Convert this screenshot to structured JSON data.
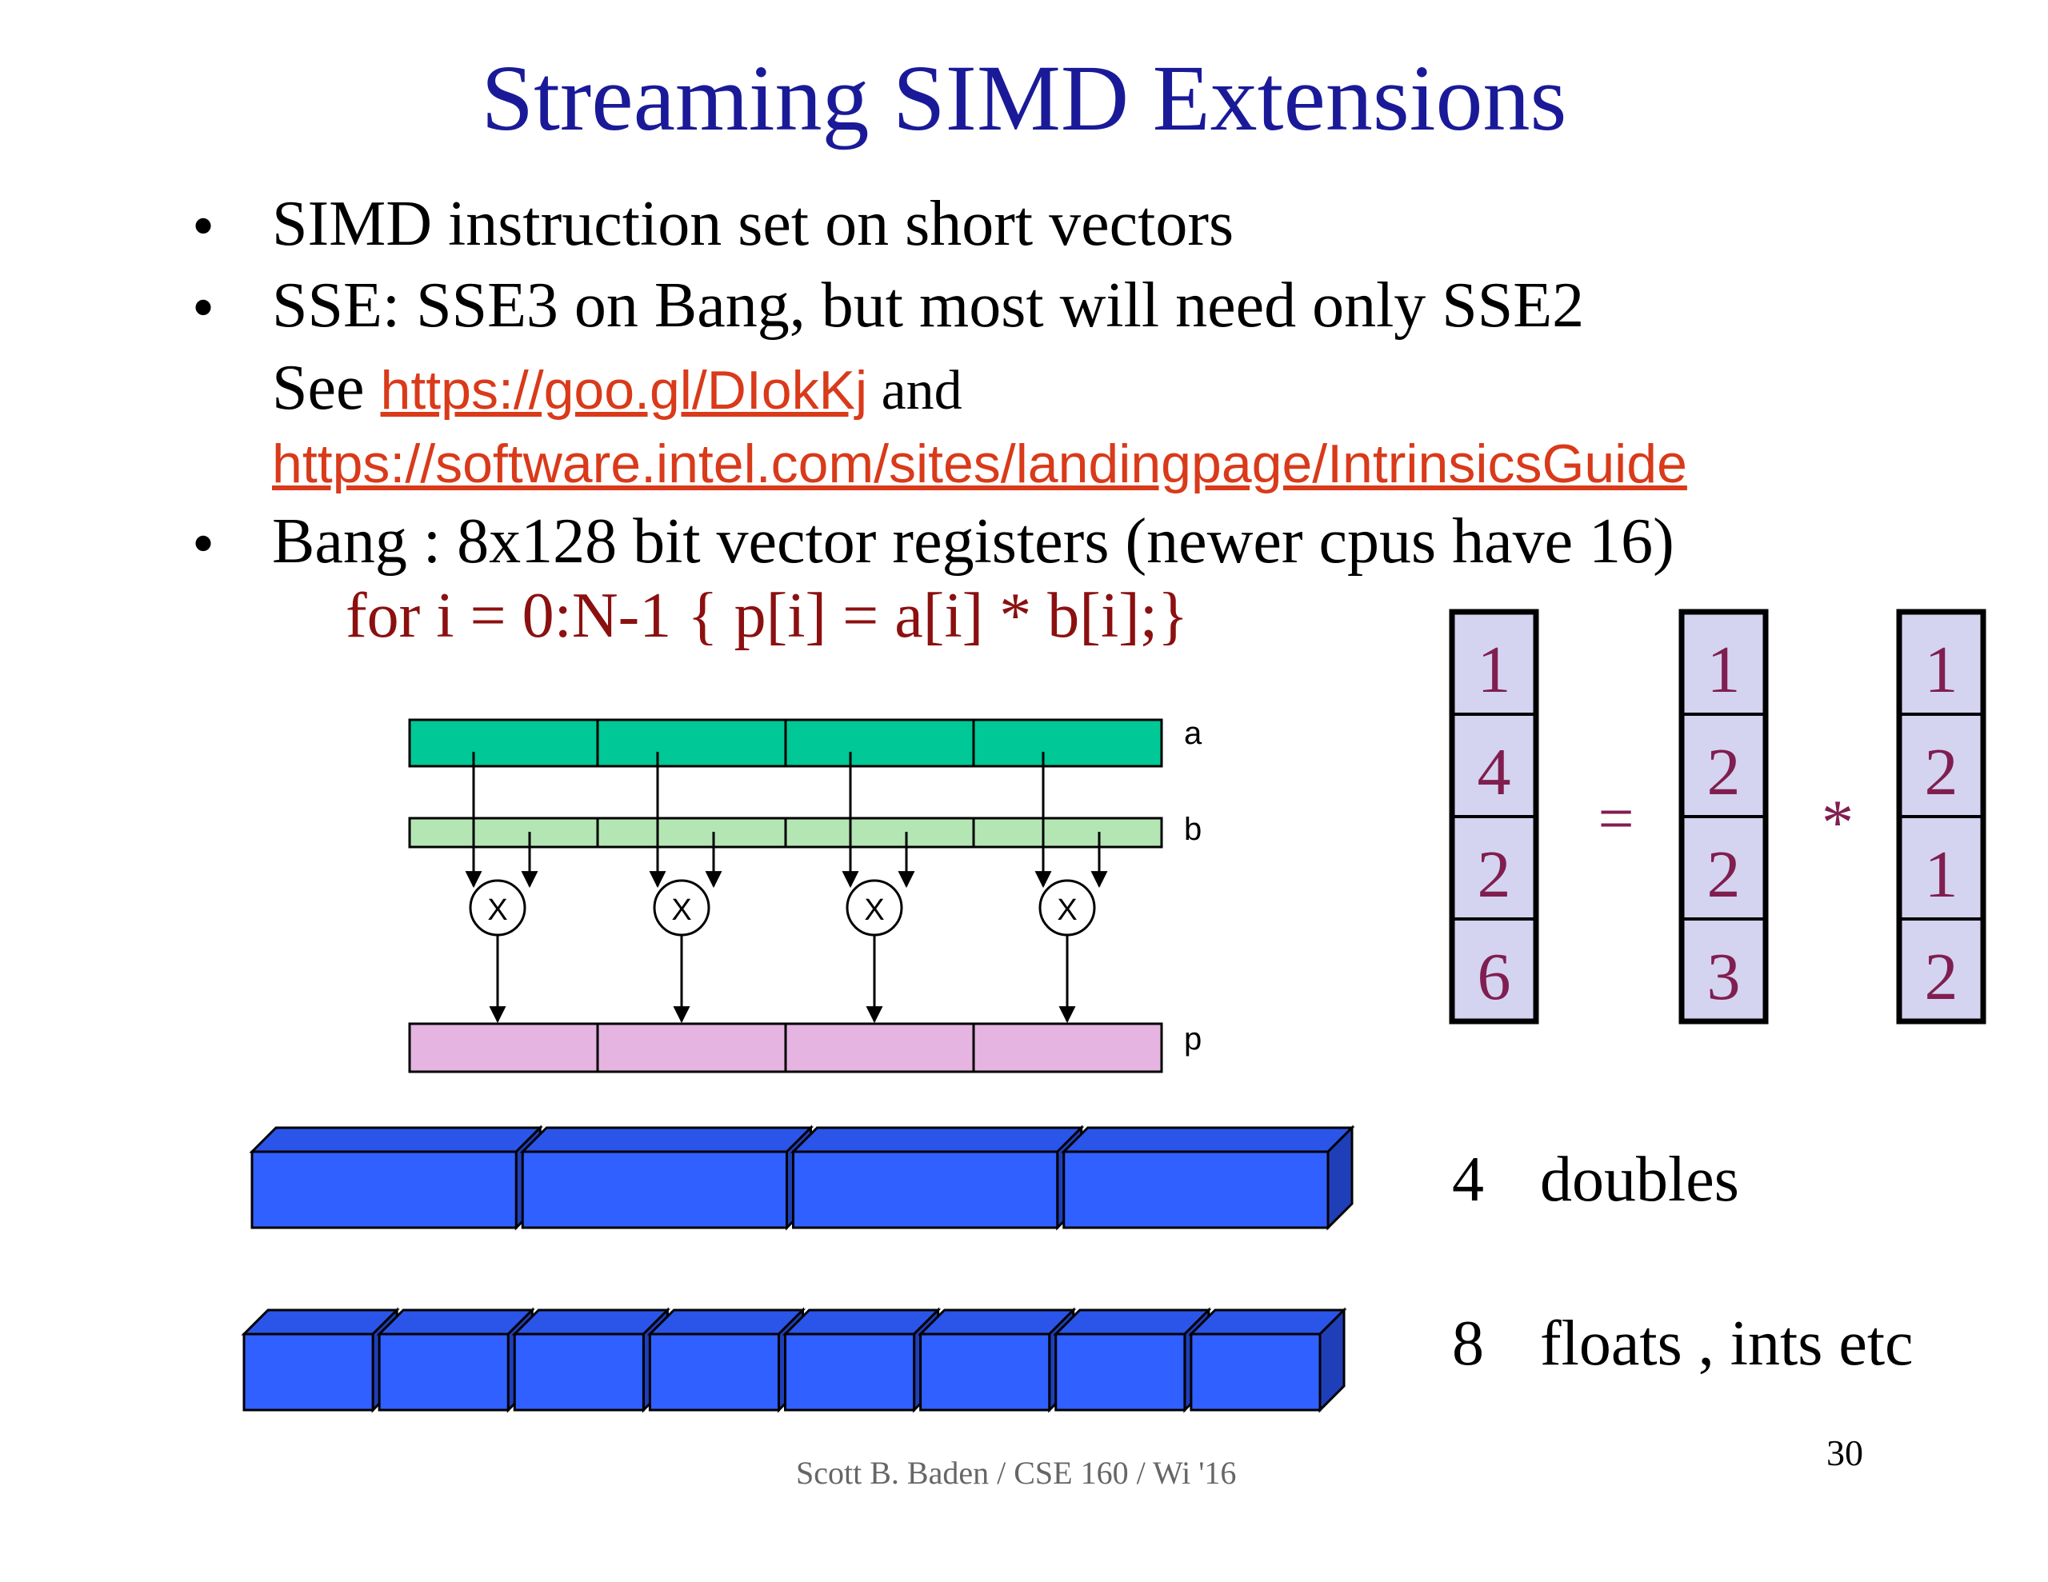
{
  "title": "Streaming SIMD Extensions",
  "bullets": {
    "b1": "SIMD instruction set on short vectors",
    "b2": "SSE: SSE3 on Bang, but most will need only SSE2",
    "b2_see": "See ",
    "b2_link1": "https://goo.gl/DIokKj",
    "b2_and": " and",
    "b2_link2": "https://software.intel.com/sites/landingpage/IntrinsicsGuide",
    "b3": "Bang : 8x128 bit vector registers (newer cpus have 16)",
    "marker": "•"
  },
  "code": "for i = 0:N-1 { p[i] = a[i] * b[i];}",
  "diagram": {
    "labels": {
      "a": "a",
      "b": "b",
      "p": "p"
    },
    "op_symbol": "X",
    "lanes": 4
  },
  "vectors": {
    "p": [
      "1",
      "4",
      "2",
      "6"
    ],
    "a": [
      "1",
      "2",
      "2",
      "3"
    ],
    "b": [
      "1",
      "2",
      "1",
      "2"
    ],
    "equals": "=",
    "times": "*"
  },
  "registers": {
    "doubles": {
      "count": "4",
      "label": "doubles"
    },
    "floats": {
      "count": "8",
      "label": "floats , ints etc"
    }
  },
  "footer": "Scott B. Baden / CSE 160 / Wi '16",
  "page_number": "30",
  "colors": {
    "title": "#1a1a99",
    "link": "#d93a1a",
    "code": "#8b1010",
    "reg_a": "#00c896",
    "reg_b": "#b4e6b4",
    "reg_p": "#e6b4e0",
    "vector_fill": "#d4d4f0",
    "vector_text": "#801e50",
    "block_blue": "#3060ff"
  }
}
